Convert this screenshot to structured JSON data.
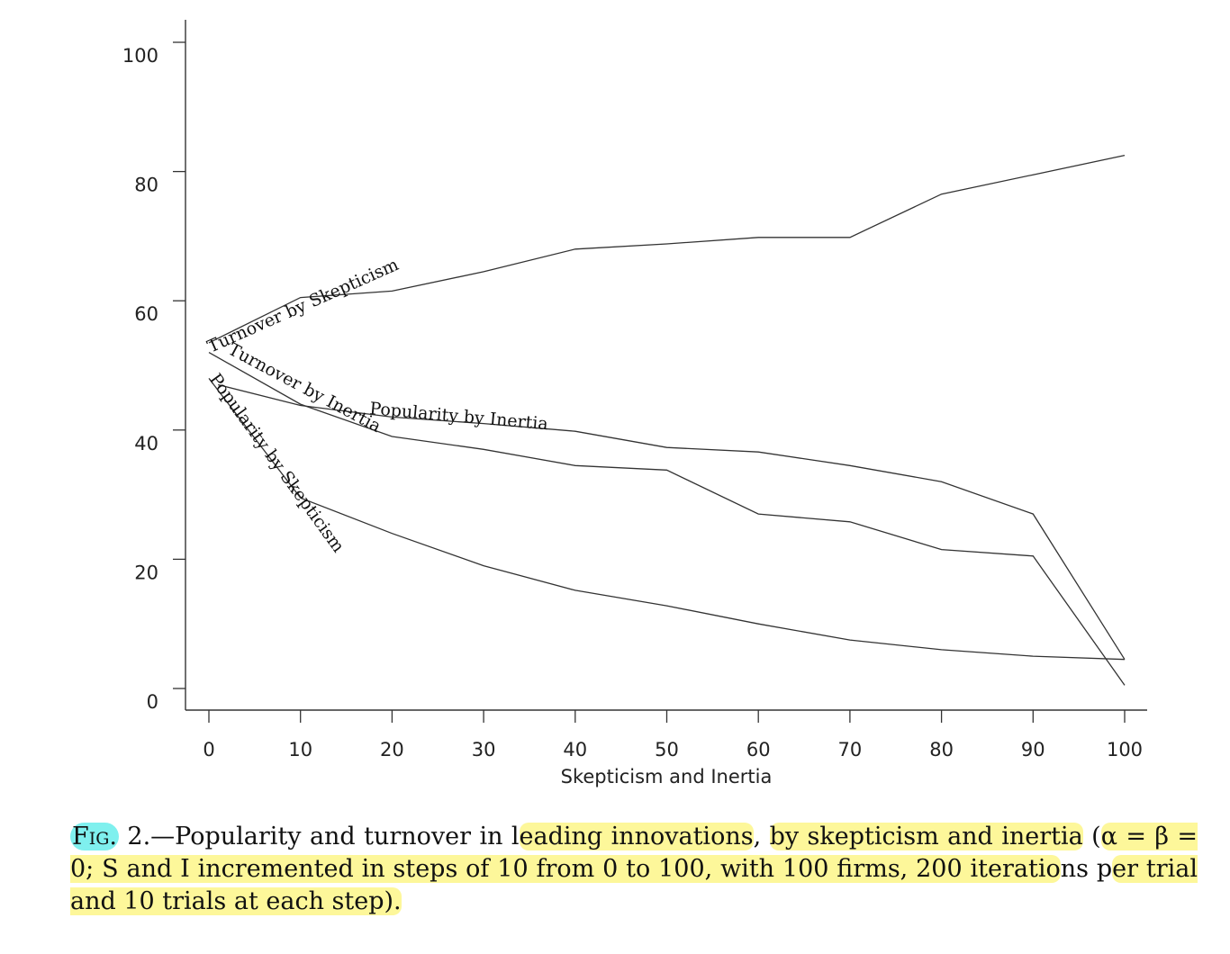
{
  "chart_data": {
    "type": "line",
    "title": "",
    "xlabel": "Skepticism and Inertia",
    "ylabel": "",
    "xlim": [
      0,
      100
    ],
    "ylim": [
      0,
      100
    ],
    "x_ticks": [
      0,
      10,
      20,
      30,
      40,
      50,
      60,
      70,
      80,
      90,
      100
    ],
    "y_ticks": [
      0,
      20,
      40,
      60,
      80,
      100
    ],
    "grid": false,
    "series": [
      {
        "name": "Turnover by Skepticism",
        "x": [
          0,
          10,
          20,
          30,
          40,
          50,
          60,
          70,
          80,
          90,
          100
        ],
        "y": [
          53.5,
          60.5,
          61.5,
          64.5,
          68,
          68.8,
          69.8,
          69.8,
          76.5,
          79.5,
          82.5
        ]
      },
      {
        "name": "Turnover by Inertia",
        "x": [
          0,
          10,
          20,
          30,
          40,
          50,
          60,
          70,
          80,
          90,
          100
        ],
        "y": [
          52,
          44,
          39,
          37,
          34.5,
          33.8,
          27,
          25.8,
          21.5,
          20.5,
          0.5
        ]
      },
      {
        "name": "Popularity by Inertia",
        "x": [
          1,
          10,
          20,
          30,
          40,
          50,
          60,
          70,
          80,
          90,
          100
        ],
        "y": [
          47,
          43.8,
          42,
          41,
          39.8,
          37.3,
          36.6,
          34.5,
          32,
          27,
          4.5
        ]
      },
      {
        "name": "Popularity by Skepticism",
        "x": [
          0,
          10,
          20,
          30,
          40,
          50,
          60,
          70,
          80,
          90,
          100
        ],
        "y": [
          48,
          29.5,
          24,
          19,
          15.2,
          12.8,
          10,
          7.5,
          6,
          5,
          4.5
        ]
      }
    ]
  },
  "caption": {
    "fig_label": "Fig.",
    "fig_number": "2.",
    "part1": "—Popularity and turnover in l",
    "hl1": "eading innovations",
    "part2": ", ",
    "hl2": "by skepticism and inertia",
    "part3": "(",
    "hl3": "α = β = 0; S and I incremented in steps of 10 from 0 to 100, with 100 firms, 200 iteratio",
    "part4": "ns p",
    "hl4": "er trial and 10 trials at each step)."
  }
}
